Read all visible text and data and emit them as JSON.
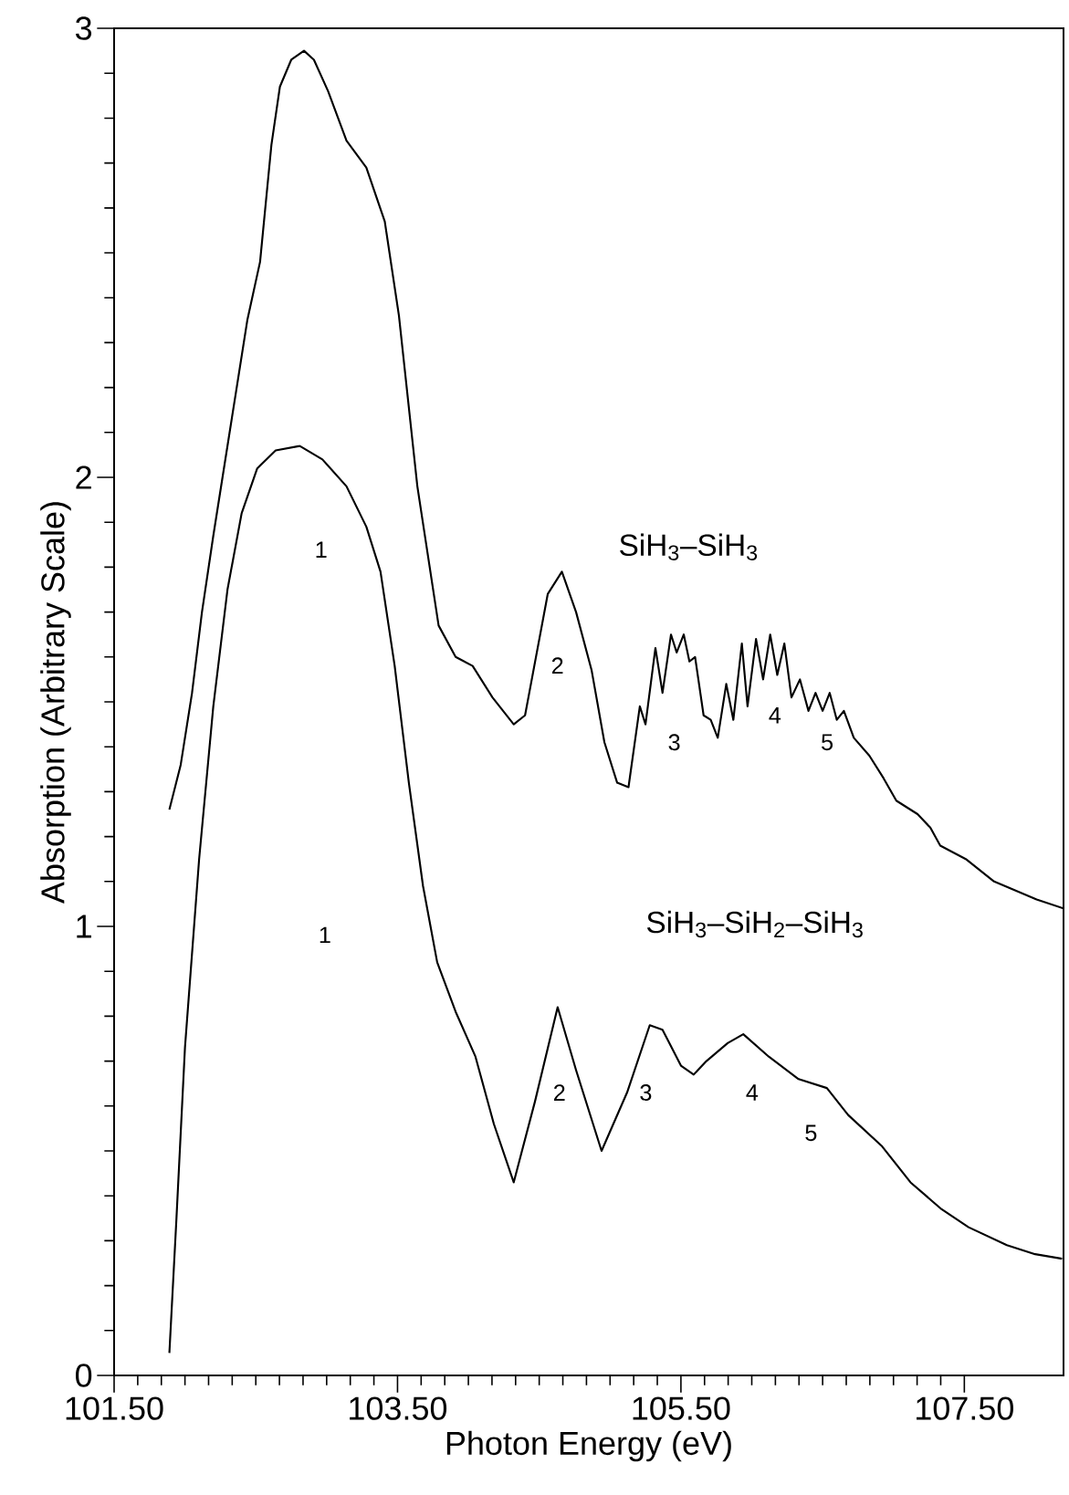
{
  "chart_data": {
    "type": "line",
    "xlabel": "Photon Energy (eV)",
    "ylabel": "Absorption (Arbitrary Scale)",
    "xlim": [
      101.5,
      108.2
    ],
    "ylim": [
      0,
      3
    ],
    "xticks": [
      {
        "value": 101.5,
        "label": "101.50"
      },
      {
        "value": 103.5,
        "label": "103.50"
      },
      {
        "value": 105.5,
        "label": "105.50"
      },
      {
        "value": 107.5,
        "label": "107.50"
      }
    ],
    "yticks": [
      0,
      1,
      2,
      3
    ],
    "series": [
      {
        "name": "SiH$_{3}$–SiH$_{3}$",
        "color": "#000000",
        "x": [
          101.89,
          101.97,
          102.05,
          102.12,
          102.2,
          102.28,
          102.36,
          102.44,
          102.53,
          102.61,
          102.67,
          102.75,
          102.84,
          102.91,
          103.01,
          103.14,
          103.28,
          103.41,
          103.51,
          103.64,
          103.79,
          103.91,
          104.03,
          104.17,
          104.32,
          104.4,
          104.56,
          104.66,
          104.76,
          104.87,
          104.96,
          105.05,
          105.13,
          105.21,
          105.25,
          105.32,
          105.37,
          105.43,
          105.47,
          105.52,
          105.56,
          105.6,
          105.66,
          105.71,
          105.76,
          105.82,
          105.87,
          105.93,
          105.97,
          106.03,
          106.08,
          106.13,
          106.18,
          106.23,
          106.28,
          106.34,
          106.4,
          106.45,
          106.5,
          106.55,
          106.6,
          106.65,
          106.72,
          106.83,
          106.93,
          107.02,
          107.17,
          107.26,
          107.33,
          107.51,
          107.71,
          107.86,
          108.01,
          108.2
        ],
        "values": [
          1.26,
          1.36,
          1.52,
          1.7,
          1.87,
          2.03,
          2.19,
          2.35,
          2.48,
          2.74,
          2.87,
          2.93,
          2.95,
          2.93,
          2.86,
          2.75,
          2.69,
          2.57,
          2.36,
          1.98,
          1.67,
          1.6,
          1.58,
          1.51,
          1.45,
          1.47,
          1.74,
          1.79,
          1.7,
          1.57,
          1.41,
          1.32,
          1.31,
          1.49,
          1.45,
          1.62,
          1.52,
          1.65,
          1.61,
          1.65,
          1.59,
          1.6,
          1.47,
          1.46,
          1.42,
          1.54,
          1.46,
          1.63,
          1.49,
          1.64,
          1.55,
          1.65,
          1.56,
          1.63,
          1.51,
          1.55,
          1.48,
          1.52,
          1.48,
          1.52,
          1.46,
          1.48,
          1.42,
          1.38,
          1.33,
          1.28,
          1.25,
          1.22,
          1.18,
          1.15,
          1.1,
          1.08,
          1.06,
          1.04
        ]
      },
      {
        "name": "SiH$_{3}$–SiH$_{2}$–SiH$_{3}$",
        "color": "#000000",
        "x": [
          101.89,
          101.94,
          102.0,
          102.1,
          102.2,
          102.3,
          102.4,
          102.51,
          102.64,
          102.81,
          102.97,
          103.14,
          103.28,
          103.38,
          103.48,
          103.58,
          103.68,
          103.78,
          103.91,
          104.05,
          104.18,
          104.32,
          104.47,
          104.63,
          104.76,
          104.94,
          105.12,
          105.28,
          105.37,
          105.5,
          105.59,
          105.68,
          105.83,
          105.94,
          106.12,
          106.33,
          106.53,
          106.68,
          106.92,
          107.12,
          107.34,
          107.53,
          107.8,
          108.0,
          108.19
        ],
        "values": [
          0.05,
          0.35,
          0.73,
          1.15,
          1.49,
          1.75,
          1.92,
          2.02,
          2.06,
          2.07,
          2.04,
          1.98,
          1.89,
          1.79,
          1.58,
          1.32,
          1.09,
          0.92,
          0.81,
          0.71,
          0.56,
          0.43,
          0.61,
          0.82,
          0.68,
          0.5,
          0.63,
          0.78,
          0.77,
          0.69,
          0.67,
          0.7,
          0.74,
          0.76,
          0.71,
          0.66,
          0.64,
          0.58,
          0.51,
          0.43,
          0.37,
          0.33,
          0.29,
          0.27,
          0.26
        ]
      }
    ],
    "annotations": [
      "1",
      "2",
      "3",
      "4",
      "5",
      "1",
      "2",
      "3",
      "4",
      "5"
    ]
  }
}
